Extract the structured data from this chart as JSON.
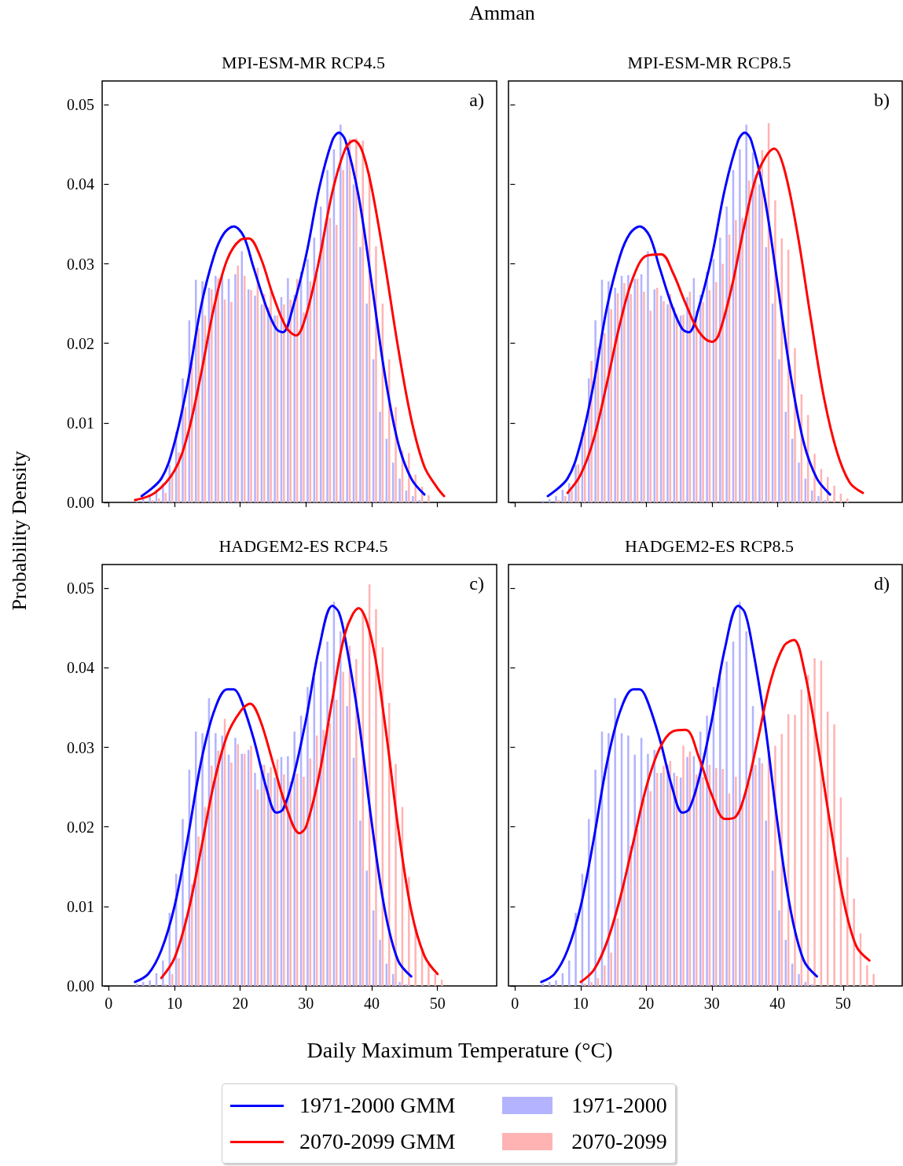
{
  "chart_data": [
    {
      "type": "histogram",
      "title": "MPI-ESM-MR RCP4.5",
      "ylabel": "Probability Density",
      "legend": "bottom",
      "annotations": [
        "a)",
        "Amman"
      ],
      "tick_labels": "y",
      "xlim": [
        -1,
        59
      ],
      "ylim": [
        0,
        0.053
      ],
      "xticks": [
        {
          "value": 0,
          "label": null
        },
        {
          "value": 10,
          "label": null
        },
        {
          "value": 20,
          "label": null
        },
        {
          "value": 30,
          "label": null
        },
        {
          "value": 40,
          "label": null
        },
        {
          "value": 50,
          "label": null
        }
      ],
      "yticks": [
        {
          "value": 0,
          "label": "0.00"
        },
        0.01,
        0.02,
        0.03,
        0.04,
        0.05
      ],
      "bins": [
        4,
        5,
        6,
        7,
        8,
        9,
        10,
        11,
        12,
        13,
        14,
        15,
        16,
        17,
        18,
        19,
        20,
        21,
        22,
        23,
        24,
        25,
        26,
        27,
        28,
        29,
        30,
        31,
        32,
        33,
        34,
        35,
        36,
        37,
        38,
        39,
        40,
        41,
        42,
        43,
        44,
        45,
        46,
        47,
        48,
        49,
        50,
        51,
        52,
        53,
        54,
        55
      ],
      "series": [
        {
          "name": "1971-2000",
          "color": "#b3b3ff",
          "values": [
            0.0002,
            0.0004,
            0.0008,
            0.0016,
            0.0024,
            0.0047,
            0.0089,
            0.0156,
            0.0229,
            0.028,
            0.0278,
            0.027,
            0.0285,
            0.0286,
            0.0281,
            0.0287,
            0.0316,
            0.0268,
            0.026,
            0.0249,
            0.0245,
            0.0235,
            0.0258,
            0.0282,
            0.0261,
            0.029,
            0.0306,
            0.0333,
            0.0372,
            0.0418,
            0.0444,
            0.0475,
            0.044,
            0.04,
            0.0321,
            0.025,
            0.018,
            0.0114,
            0.008,
            0.005,
            0.003,
            0.0015,
            0.0008,
            0.0003,
            0,
            0,
            0,
            0,
            0,
            0,
            0
          ]
        },
        {
          "name": "2070-2099",
          "color": "#ffb3b3",
          "values": [
            0,
            null,
            0.0003,
            0.0005,
            0.0012,
            0.0036,
            0.0063,
            0.012,
            0.0176,
            0.0219,
            0.0235,
            0.0268,
            0.0282,
            0.0255,
            0.0252,
            0.0298,
            0.0285,
            0.0267,
            0.0295,
            0.0262,
            0.0265,
            0.0235,
            0.0249,
            0.0255,
            0.0281,
            0.0239,
            0.0278,
            0.0285,
            0.033,
            0.0358,
            0.0349,
            0.0418,
            0.0457,
            0.0458,
            0.0455,
            0.0415,
            0.0322,
            0.025,
            0.018,
            0.012,
            0.0065,
            0.0062,
            0.0035,
            0.002,
            0.0009,
            0,
            0,
            0,
            0,
            0,
            0
          ]
        },
        {
          "name": "1971-2000 GMM",
          "type": "line",
          "color": "#0000ff",
          "x": [
            5,
            8,
            10,
            12,
            14,
            16,
            17.5,
            19,
            20.5,
            22,
            24,
            25.5,
            26.5,
            28,
            30,
            32,
            34,
            35,
            36,
            38,
            40,
            42,
            44,
            46,
            48
          ],
          "values": [
            0.0008,
            0.003,
            0.0075,
            0.015,
            0.0245,
            0.031,
            0.0338,
            0.0347,
            0.0335,
            0.0296,
            0.0245,
            0.0218,
            0.0214,
            0.0245,
            0.031,
            0.0395,
            0.0455,
            0.0465,
            0.0455,
            0.0385,
            0.0275,
            0.016,
            0.0075,
            0.003,
            0.001
          ]
        },
        {
          "name": "2070-2099 GMM",
          "type": "line",
          "color": "#ff0000",
          "x": [
            4,
            7,
            10,
            12,
            14,
            16,
            18,
            20,
            21.3,
            23,
            25,
            27,
            28.5,
            30,
            32,
            34,
            36,
            37.3,
            38.5,
            40,
            42,
            44,
            46,
            48,
            50,
            51
          ],
          "values": [
            0.0003,
            0.0012,
            0.004,
            0.0085,
            0.016,
            0.0245,
            0.0305,
            0.033,
            0.0332,
            0.031,
            0.026,
            0.022,
            0.021,
            0.0235,
            0.0305,
            0.039,
            0.0445,
            0.0455,
            0.0443,
            0.0395,
            0.03,
            0.0195,
            0.0105,
            0.0045,
            0.0018,
            0.0008
          ]
        }
      ]
    },
    {
      "type": "histogram",
      "title": "MPI-ESM-MR RCP8.5",
      "annotations": [
        "b)"
      ],
      "tick_labels": false,
      "xlim": [
        -1,
        59
      ],
      "ylim": [
        0,
        0.053
      ],
      "xticks": [
        {
          "value": 0,
          "label": null
        },
        {
          "value": 10,
          "label": null
        },
        {
          "value": 20,
          "label": null
        },
        {
          "value": 30,
          "label": null
        },
        {
          "value": 40,
          "label": null
        },
        {
          "value": 50,
          "label": null
        }
      ],
      "yticks": [
        {
          "value": 0,
          "label": null
        },
        {
          "value": 0.01,
          "label": null
        },
        {
          "value": 0.02,
          "label": null
        },
        {
          "value": 0.03,
          "label": null
        },
        {
          "value": 0.04,
          "label": null
        },
        {
          "value": 0.05,
          "label": null
        }
      ],
      "bins": [
        4,
        5,
        6,
        7,
        8,
        9,
        10,
        11,
        12,
        13,
        14,
        15,
        16,
        17,
        18,
        19,
        20,
        21,
        22,
        23,
        24,
        25,
        26,
        27,
        28,
        29,
        30,
        31,
        32,
        33,
        34,
        35,
        36,
        37,
        38,
        39,
        40,
        41,
        42,
        43,
        44,
        45,
        46,
        47,
        48,
        49,
        50,
        51,
        52,
        53,
        54,
        55
      ],
      "series": [
        {
          "name": "1971-2000",
          "color": "#b3b3ff",
          "values": [
            0.0002,
            0.0004,
            0.0008,
            0.0016,
            0.0024,
            0.0047,
            0.0089,
            0.0156,
            0.0229,
            0.028,
            0.0278,
            0.027,
            0.0285,
            0.0286,
            0.0281,
            0.0287,
            0.0316,
            0.0268,
            0.026,
            0.0249,
            0.0245,
            0.0235,
            0.0258,
            0.0282,
            0.0261,
            0.029,
            0.0306,
            0.0333,
            0.0372,
            0.0418,
            0.0444,
            0.0475,
            0.044,
            0.04,
            0.0321,
            0.025,
            0.018,
            0.0114,
            0.008,
            0.005,
            0.003,
            0.0015,
            0.0008,
            0.0003,
            0,
            0,
            0,
            0,
            0,
            0,
            0
          ]
        },
        {
          "name": "2070-2099",
          "color": "#ffb3b3",
          "values": [
            0,
            0,
            0.0003,
            0.0008,
            0.0015,
            0.0048,
            0.0095,
            0.0178,
            0.0195,
            0.0213,
            0.0243,
            0.0263,
            0.0276,
            0.0262,
            0.0281,
            0.0265,
            0.0241,
            0.027,
            0.0253,
            0.0262,
            0.0237,
            0.0236,
            0.0265,
            0.0241,
            0.0252,
            0.0267,
            0.0277,
            0.03,
            0.0337,
            0.0355,
            0.0358,
            0.0405,
            0.0412,
            0.0443,
            0.0477,
            0.038,
            0.0332,
            0.0318,
            0.0194,
            0.0136,
            0.011,
            0.0061,
            0.0042,
            0.0032,
            0.0021,
            0.0011,
            0.0005,
            0,
            0,
            0,
            0
          ]
        },
        {
          "name": "1971-2000 GMM",
          "type": "line",
          "color": "#0000ff",
          "x": [
            5,
            8,
            10,
            12,
            14,
            16,
            17.5,
            19,
            20.5,
            22,
            24,
            25.5,
            26.5,
            28,
            30,
            32,
            34,
            35,
            36,
            38,
            40,
            42,
            44,
            46,
            48
          ],
          "values": [
            0.0008,
            0.003,
            0.0075,
            0.015,
            0.0245,
            0.031,
            0.0338,
            0.0347,
            0.0335,
            0.0296,
            0.0245,
            0.0218,
            0.0214,
            0.0245,
            0.031,
            0.0395,
            0.0455,
            0.0465,
            0.0455,
            0.0385,
            0.0275,
            0.016,
            0.0075,
            0.003,
            0.001
          ]
        },
        {
          "name": "2070-2099 GMM",
          "type": "line",
          "color": "#ff0000",
          "x": [
            8,
            10,
            12,
            14,
            16,
            18,
            20,
            22.3,
            24,
            26,
            28,
            30,
            31,
            33,
            35,
            37,
            39.5,
            41,
            43,
            45,
            47,
            49,
            51,
            53
          ],
          "values": [
            0.0012,
            0.0035,
            0.008,
            0.015,
            0.0225,
            0.0283,
            0.031,
            0.0312,
            0.029,
            0.025,
            0.0215,
            0.0202,
            0.021,
            0.027,
            0.035,
            0.0415,
            0.0445,
            0.042,
            0.034,
            0.0235,
            0.0135,
            0.0065,
            0.0025,
            0.0012
          ]
        }
      ]
    },
    {
      "type": "histogram",
      "title": "HADGEM2-ES RCP4.5",
      "xlabel": "Daily Maximum Temperature (°C)",
      "annotations": [
        "c)"
      ],
      "xlim": [
        -1,
        59
      ],
      "ylim": [
        0,
        0.053
      ],
      "xticks": [
        0,
        10,
        20,
        30,
        40,
        50
      ],
      "yticks": [
        {
          "value": 0,
          "label": "0.00"
        },
        0.01,
        0.02,
        0.03,
        0.04,
        0.05
      ],
      "bins": [
        4,
        5,
        6,
        7,
        8,
        9,
        10,
        11,
        12,
        13,
        14,
        15,
        16,
        17,
        18,
        19,
        20,
        21,
        22,
        23,
        24,
        25,
        26,
        27,
        28,
        29,
        30,
        31,
        32,
        33,
        34,
        35,
        36,
        37,
        38,
        39,
        40,
        41,
        42,
        43,
        44,
        45,
        46,
        47,
        48,
        49,
        50,
        51,
        52,
        53,
        54,
        55
      ],
      "series": [
        {
          "name": "1971-2000",
          "color": "#b3b3ff",
          "values": [
            0.0003,
            0.0005,
            0.0007,
            0.0016,
            0.0032,
            0.0092,
            0.0141,
            0.021,
            0.0272,
            0.032,
            0.0318,
            0.0362,
            0.0318,
            0.0315,
            0.0291,
            0.0312,
            0.0292,
            0.0297,
            0.0268,
            0.0278,
            0.0268,
            0.0262,
            0.0288,
            0.0289,
            0.032,
            0.034,
            0.0376,
            0.0388,
            0.0408,
            0.0433,
            0.0483,
            0.0446,
            0.0352,
            0.0287,
            0.0208,
            0.0145,
            0.0095,
            0.0058,
            0.0028,
            0.0015,
            0.0005,
            0.0002,
            0,
            0,
            0,
            0,
            0,
            0,
            0,
            0,
            0
          ]
        },
        {
          "name": "2070-2099",
          "color": "#ffb3b3",
          "values": [
            0,
            0,
            0,
            0,
            0.0002,
            0.0015,
            0.0035,
            0.0085,
            0.0128,
            0.0188,
            0.0225,
            0.0277,
            0.0296,
            0.0336,
            0.0281,
            0.0304,
            0.0292,
            0.0302,
            0.0247,
            0.0278,
            0.0275,
            0.0285,
            0.0266,
            0.0257,
            0.0267,
            0.0263,
            0.0286,
            0.0315,
            0.0322,
            0.033,
            0.036,
            0.0395,
            0.0428,
            0.0411,
            0.0472,
            0.0505,
            0.0474,
            0.0426,
            0.0356,
            0.0279,
            0.0225,
            0.0137,
            0.0075,
            0.0048,
            0.003,
            0.0015,
            0.0008,
            0,
            0,
            0,
            0
          ]
        },
        {
          "name": "1971-2000 GMM",
          "type": "line",
          "color": "#0000ff",
          "x": [
            4,
            6,
            8,
            10,
            12,
            14,
            16,
            18,
            19,
            20,
            22,
            24,
            25.5,
            26.5,
            28,
            30,
            32,
            34,
            35,
            36,
            38,
            40,
            42,
            44,
            46
          ],
          "values": [
            0.0005,
            0.0015,
            0.0045,
            0.01,
            0.0185,
            0.028,
            0.0345,
            0.0373,
            0.0373,
            0.0362,
            0.0312,
            0.0248,
            0.0218,
            0.0222,
            0.026,
            0.0335,
            0.0425,
            0.0478,
            0.047,
            0.0435,
            0.0335,
            0.0205,
            0.0095,
            0.0032,
            0.0012
          ]
        },
        {
          "name": "2070-2099 GMM",
          "type": "line",
          "color": "#ff0000",
          "x": [
            8,
            10,
            12,
            14,
            16,
            18,
            20,
            21.5,
            23,
            25,
            27,
            29,
            30,
            32,
            34,
            36,
            38,
            40,
            42,
            44,
            46,
            48,
            50
          ],
          "values": [
            0.001,
            0.0035,
            0.009,
            0.017,
            0.0255,
            0.0315,
            0.0345,
            0.0355,
            0.0335,
            0.028,
            0.0225,
            0.0192,
            0.02,
            0.0265,
            0.036,
            0.0445,
            0.0475,
            0.0435,
            0.033,
            0.02,
            0.0095,
            0.0038,
            0.0015
          ]
        }
      ]
    },
    {
      "type": "histogram",
      "title": "HADGEM2-ES RCP8.5",
      "annotations": [
        "d)"
      ],
      "tick_labels": "x",
      "xlim": [
        -1,
        59
      ],
      "ylim": [
        0,
        0.053
      ],
      "xticks": [
        0,
        10,
        20,
        30,
        40,
        50
      ],
      "yticks": [
        {
          "value": 0,
          "label": null
        },
        {
          "value": 0.01,
          "label": null
        },
        {
          "value": 0.02,
          "label": null
        },
        {
          "value": 0.03,
          "label": null
        },
        {
          "value": 0.04,
          "label": null
        },
        {
          "value": 0.05,
          "label": null
        }
      ],
      "bins": [
        4,
        5,
        6,
        7,
        8,
        9,
        10,
        11,
        12,
        13,
        14,
        15,
        16,
        17,
        18,
        19,
        20,
        21,
        22,
        23,
        24,
        25,
        26,
        27,
        28,
        29,
        30,
        31,
        32,
        33,
        34,
        35,
        36,
        37,
        38,
        39,
        40,
        41,
        42,
        43,
        44,
        45,
        46,
        47,
        48,
        49,
        50,
        51,
        52,
        53,
        54,
        55
      ],
      "series": [
        {
          "name": "1971-2000",
          "color": "#b3b3ff",
          "values": [
            0.0003,
            0.0005,
            0.0007,
            0.0016,
            0.0032,
            0.0092,
            0.0141,
            0.021,
            0.0272,
            0.032,
            0.0318,
            0.0362,
            0.0318,
            0.0315,
            0.0291,
            0.0312,
            0.0292,
            0.0297,
            0.0268,
            0.0278,
            0.0268,
            0.0262,
            0.0288,
            0.0289,
            0.032,
            0.034,
            0.0376,
            0.0388,
            0.0408,
            0.0433,
            0.0483,
            0.0446,
            0.0352,
            0.0287,
            0.0208,
            0.0145,
            0.0095,
            0.0058,
            0.0028,
            0.0015,
            0.0005,
            0.0002,
            0,
            0,
            0,
            0,
            0,
            0,
            0,
            0,
            0
          ]
        },
        {
          "name": "2070-2099",
          "color": "#ffb3b3",
          "values": [
            0,
            0,
            0,
            0,
            0,
            0,
            0.0003,
            0.0005,
            0.001,
            0.0026,
            0.0042,
            0.0085,
            0.0128,
            0.0176,
            0.0197,
            0.0235,
            0.0245,
            0.0268,
            0.0277,
            0.0283,
            0.0264,
            0.0302,
            0.0295,
            0.0266,
            0.0263,
            0.0278,
            0.0274,
            0.0273,
            0.0242,
            0.0263,
            0.0232,
            0.0255,
            0.0278,
            0.028,
            0.0295,
            0.0302,
            0.0317,
            0.0342,
            0.0341,
            0.0373,
            0.0391,
            0.0412,
            0.0409,
            0.0345,
            0.0329,
            0.0237,
            0.0162,
            0.011,
            0.0066,
            0.0026,
            0.0015
          ]
        },
        {
          "name": "1971-2000 GMM",
          "type": "line",
          "color": "#0000ff",
          "x": [
            4,
            6,
            8,
            10,
            12,
            14,
            16,
            18,
            19,
            20,
            22,
            24,
            25.5,
            26.5,
            28,
            30,
            32,
            34,
            35,
            36,
            38,
            40,
            42,
            44,
            46
          ],
          "values": [
            0.0005,
            0.0015,
            0.0045,
            0.01,
            0.0185,
            0.028,
            0.0345,
            0.0373,
            0.0373,
            0.0362,
            0.0312,
            0.0248,
            0.0218,
            0.0222,
            0.026,
            0.0335,
            0.0425,
            0.0478,
            0.047,
            0.0435,
            0.0335,
            0.0205,
            0.0095,
            0.0032,
            0.0012
          ]
        },
        {
          "name": "2070-2099 GMM",
          "type": "line",
          "color": "#ff0000",
          "x": [
            10,
            12,
            14,
            16,
            18,
            20,
            22,
            24,
            26,
            28,
            30,
            32,
            33.5,
            35,
            37,
            39,
            41,
            42.5,
            44,
            46,
            48,
            50,
            52,
            54
          ],
          "values": [
            0.0005,
            0.002,
            0.0055,
            0.011,
            0.018,
            0.025,
            0.0298,
            0.032,
            0.0322,
            0.0288,
            0.024,
            0.021,
            0.0212,
            0.024,
            0.031,
            0.0385,
            0.0428,
            0.0435,
            0.04,
            0.031,
            0.0205,
            0.011,
            0.005,
            0.0032
          ]
        }
      ]
    }
  ]
}
